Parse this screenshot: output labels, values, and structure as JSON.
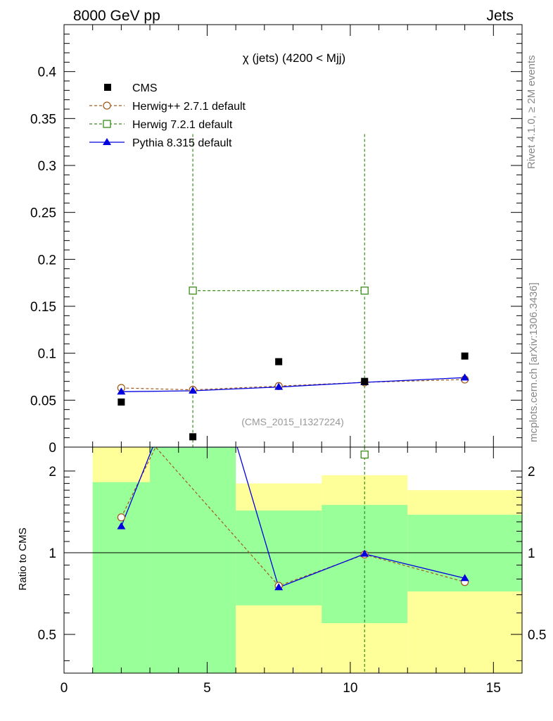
{
  "header": {
    "left": "8000 GeV pp",
    "right": "Jets"
  },
  "side_labels": {
    "top": "Rivet 4.1.0, ≥ 2M events",
    "bottom": "mcplots.cern.ch [arXiv:1306.3436]"
  },
  "chart_data": {
    "type": "scatter",
    "title": "χ (jets) (4200 < Mjj)",
    "watermark": "(CMS_2015_I1327224)",
    "xlabel": "",
    "ylabel": "",
    "xlim": [
      0,
      16
    ],
    "ylim": [
      0,
      0.45
    ],
    "xticks": [
      0,
      5,
      10,
      15
    ],
    "yticks": [
      0.05,
      0.1,
      0.15,
      0.2,
      0.25,
      0.3,
      0.35,
      0.4
    ],
    "ytick_labels": [
      "0.05",
      "0.1",
      "0.15",
      "0.2",
      "0.25",
      "0.3",
      "0.35",
      "0.4"
    ],
    "y_zero_label": "0",
    "legend_position": "top-left",
    "series": [
      {
        "name": "CMS",
        "color": "#000000",
        "marker": "square-filled",
        "line": "none",
        "x": [
          2,
          4.5,
          7.5,
          10.5,
          14
        ],
        "y": [
          0.048,
          0.011,
          0.091,
          0.07,
          0.097
        ]
      },
      {
        "name": "Herwig++ 2.7.1 default",
        "color": "#a05a1e",
        "marker": "circle-open",
        "line": "dashed",
        "x": [
          2,
          4.5,
          7.5,
          10.5,
          14
        ],
        "y": [
          0.063,
          0.061,
          0.065,
          0.069,
          0.072
        ]
      },
      {
        "name": "Herwig 7.2.1 default",
        "color": "#3a8c1a",
        "marker": "square-open",
        "line": "dashed",
        "x": [
          4.5,
          10.5
        ],
        "y": [
          0.1667,
          0.1667
        ],
        "yerr_up": [
          0.1667,
          0.1667
        ],
        "yerr_down": [
          0.1667,
          0.1667
        ]
      },
      {
        "name": "Pythia 8.315 default",
        "color": "#0000e0",
        "marker": "triangle-filled",
        "line": "solid",
        "x": [
          2,
          4.5,
          7.5,
          10.5,
          14
        ],
        "y": [
          0.059,
          0.06,
          0.064,
          0.069,
          0.074
        ]
      }
    ],
    "ratio": {
      "ylabel": "Ratio to CMS",
      "ylim": [
        0.36,
        2.45
      ],
      "yscale": "log",
      "yticks": [
        0.5,
        1,
        2
      ],
      "ytick_labels": [
        "0.5",
        "1",
        "2"
      ],
      "reference_line": 1,
      "bands": [
        {
          "xlo": 1,
          "xhi": 3,
          "green_lo": 0.36,
          "green_hi": 1.82,
          "yellow_lo": 0.36,
          "yellow_hi": 2.45
        },
        {
          "xlo": 3,
          "xhi": 6,
          "green_lo": 0.36,
          "green_hi": 2.45,
          "yellow_lo": 0.36,
          "yellow_hi": 2.45
        },
        {
          "xlo": 6,
          "xhi": 9,
          "green_lo": 0.64,
          "green_hi": 1.43,
          "yellow_lo": 0.36,
          "yellow_hi": 1.8
        },
        {
          "xlo": 9,
          "xhi": 12,
          "green_lo": 0.55,
          "green_hi": 1.5,
          "yellow_lo": 0.36,
          "yellow_hi": 1.93
        },
        {
          "xlo": 12,
          "xhi": 16,
          "green_lo": 0.72,
          "green_hi": 1.38,
          "yellow_lo": 0.36,
          "yellow_hi": 1.7
        }
      ],
      "series": [
        {
          "name": "Herwig++ 2.7.1 default",
          "x": [
            2,
            3.2,
            7.5,
            10.5,
            14
          ],
          "y": [
            1.35,
            2.45,
            0.755,
            0.985,
            0.78
          ]
        },
        {
          "name": "Herwig 7.2.1 default",
          "x": [
            10.5
          ],
          "y": [
            2.3
          ]
        },
        {
          "name": "Pythia 8.315 default",
          "x": [
            2,
            3.1,
            6.05,
            7.5,
            10.5,
            14
          ],
          "y": [
            1.25,
            2.45,
            2.45,
            0.745,
            0.99,
            0.805
          ]
        }
      ]
    }
  }
}
